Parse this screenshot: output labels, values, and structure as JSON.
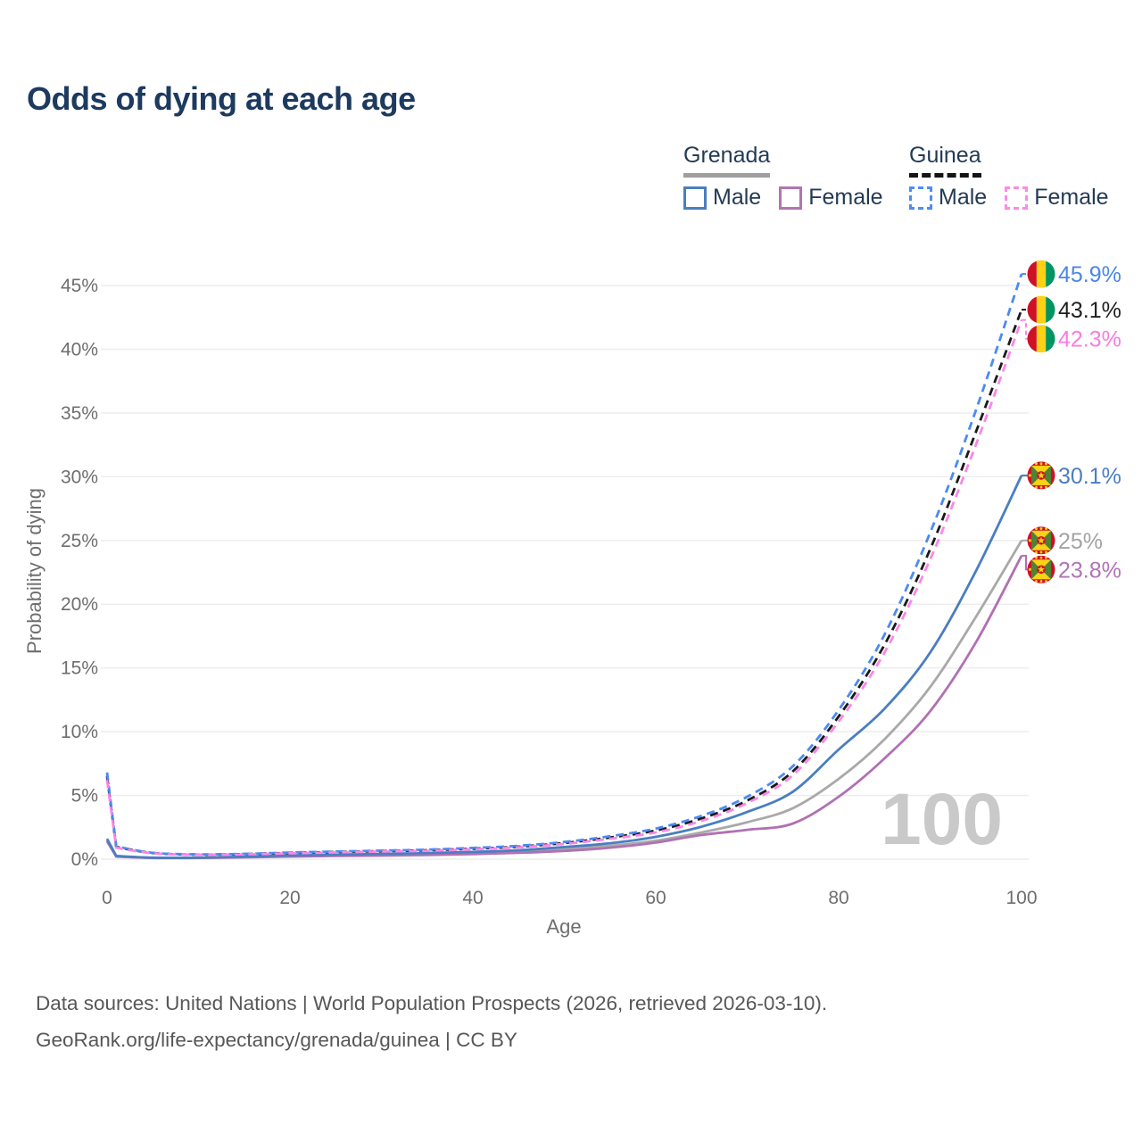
{
  "title": "Odds of dying at each age",
  "legend": {
    "groups": [
      {
        "country": "Grenada",
        "style": "solid",
        "underline_color": "#9e9e9e",
        "items": [
          {
            "label": "Male",
            "color": "#4a7ec0"
          },
          {
            "label": "Female",
            "color": "#b175b1"
          }
        ]
      },
      {
        "country": "Guinea",
        "style": "dashed",
        "underline_color": "#141414",
        "items": [
          {
            "label": "Male",
            "color": "#4c8df5"
          },
          {
            "label": "Female",
            "color": "#fb8ae8"
          }
        ]
      }
    ]
  },
  "chart_data": {
    "type": "line",
    "title": "Odds of dying at each age",
    "xlabel": "Age",
    "ylabel": "Probability of dying",
    "xlim": [
      0,
      100
    ],
    "ylim_percent": [
      0,
      46
    ],
    "grid": "horizontal",
    "legend_position": "top-right",
    "hover_age_watermark": "100",
    "xticks": {
      "values": [
        0,
        20,
        40,
        60,
        80,
        100
      ],
      "labels": [
        "0",
        "20",
        "40",
        "60",
        "80",
        "100"
      ]
    },
    "yticks": {
      "values": [
        0,
        5,
        10,
        15,
        20,
        25,
        30,
        35,
        40,
        45
      ],
      "labels": [
        "0%",
        "5%",
        "10%",
        "15%",
        "20%",
        "25%",
        "30%",
        "35%",
        "40%",
        "45%"
      ]
    },
    "x": [
      0,
      1,
      5,
      10,
      15,
      20,
      25,
      30,
      35,
      40,
      45,
      50,
      55,
      60,
      65,
      70,
      75,
      80,
      85,
      90,
      95,
      100
    ],
    "series": [
      {
        "name": "Grenada Total",
        "country": "Grenada",
        "sex": "Total",
        "color": "#a9a9a9",
        "dashed": false,
        "end_label": "25%",
        "label_color": "#a3a3a3",
        "values": [
          1.5,
          0.22,
          0.11,
          0.11,
          0.17,
          0.25,
          0.3,
          0.35,
          0.4,
          0.48,
          0.6,
          0.8,
          1.05,
          1.45,
          2.1,
          2.9,
          4.0,
          6.3,
          9.4,
          13.5,
          19.0,
          25.0
        ]
      },
      {
        "name": "Grenada Female",
        "country": "Grenada",
        "sex": "Female",
        "color": "#b071b3",
        "dashed": false,
        "end_label": "23.8%",
        "label_color": "#af74b5",
        "values": [
          1.4,
          0.2,
          0.1,
          0.1,
          0.14,
          0.2,
          0.25,
          0.28,
          0.33,
          0.4,
          0.5,
          0.65,
          0.9,
          1.3,
          1.9,
          2.3,
          2.8,
          4.9,
          7.9,
          11.6,
          17.0,
          23.8
        ]
      },
      {
        "name": "Grenada Male",
        "country": "Grenada",
        "sex": "Male",
        "color": "#4a7ec0",
        "dashed": false,
        "end_label": "30.1%",
        "label_color": "#4a7ec0",
        "values": [
          1.6,
          0.25,
          0.12,
          0.12,
          0.2,
          0.3,
          0.36,
          0.42,
          0.48,
          0.57,
          0.7,
          0.95,
          1.25,
          1.75,
          2.55,
          3.7,
          5.3,
          8.6,
          11.8,
          16.2,
          22.6,
          30.1
        ]
      },
      {
        "name": "Guinea Total",
        "country": "Guinea",
        "sex": "Total",
        "color": "#1a1a1a",
        "dashed": true,
        "end_label": "43.1%",
        "label_color": "#1f1f1f",
        "values": [
          6.5,
          0.95,
          0.48,
          0.36,
          0.4,
          0.49,
          0.56,
          0.63,
          0.7,
          0.82,
          0.98,
          1.27,
          1.7,
          2.25,
          3.2,
          4.6,
          6.9,
          11.2,
          16.8,
          24.3,
          33.5,
          43.1
        ]
      },
      {
        "name": "Guinea Male",
        "country": "Guinea",
        "sex": "Male",
        "color": "#4c8af0",
        "dashed": true,
        "end_label": "45.9%",
        "label_color": "#4c86ea",
        "values": [
          6.8,
          1.0,
          0.5,
          0.38,
          0.42,
          0.52,
          0.6,
          0.67,
          0.75,
          0.88,
          1.05,
          1.35,
          1.8,
          2.4,
          3.4,
          4.9,
          7.3,
          11.7,
          17.6,
          25.6,
          35.2,
          45.9
        ]
      },
      {
        "name": "Guinea Female",
        "country": "Guinea",
        "sex": "Female",
        "color": "#fb86e8",
        "dashed": true,
        "end_label": "42.3%",
        "label_color": "#f97ce1",
        "values": [
          6.2,
          0.9,
          0.46,
          0.35,
          0.38,
          0.46,
          0.53,
          0.6,
          0.66,
          0.78,
          0.93,
          1.2,
          1.6,
          2.1,
          3.0,
          4.4,
          6.6,
          10.8,
          16.2,
          23.5,
          32.5,
          42.3
        ]
      }
    ],
    "flag_colors": {
      "guinea": {
        "red": "#CE1126",
        "yellow": "#FCD116",
        "green": "#009460"
      },
      "grenada": {
        "red": "#CE1126",
        "yellow": "#FCD116",
        "green": "#4e8234"
      }
    }
  },
  "footer": {
    "line1": "Data sources: United Nations | World Population Prospects (2026, retrieved 2026-03-10).",
    "line2": "GeoRank.org/life-expectancy/grenada/guinea | CC BY"
  }
}
